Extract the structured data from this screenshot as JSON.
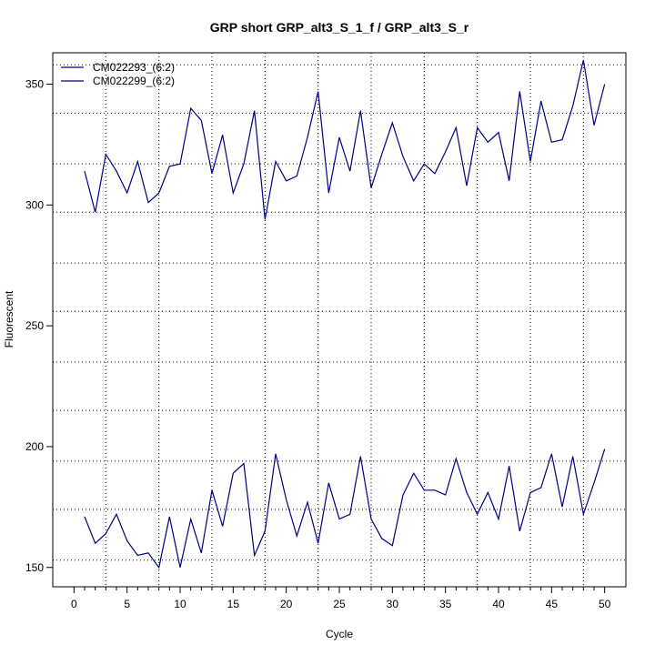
{
  "chart_data": {
    "type": "line",
    "title": "GRP short GRP_alt3_S_1_f / GRP_alt3_S_r",
    "xlabel": "Cycle",
    "ylabel": "Fluorescent",
    "xlim": [
      -2,
      52
    ],
    "ylim": [
      142,
      363
    ],
    "x_ticks": [
      0,
      5,
      10,
      15,
      20,
      25,
      30,
      35,
      40,
      45,
      50
    ],
    "y_ticks": [
      150,
      200,
      250,
      300,
      350
    ],
    "x_grid": [
      3,
      8,
      13,
      18,
      23,
      28,
      33,
      38,
      43,
      48
    ],
    "y_grid": [
      153,
      174,
      194,
      215,
      235,
      256,
      276,
      297,
      317,
      338,
      358
    ],
    "legend_position": "top-left",
    "x": [
      1,
      2,
      3,
      4,
      5,
      6,
      7,
      8,
      9,
      10,
      11,
      12,
      13,
      14,
      15,
      16,
      17,
      18,
      19,
      20,
      21,
      22,
      23,
      24,
      25,
      26,
      27,
      28,
      29,
      30,
      31,
      32,
      33,
      34,
      35,
      36,
      37,
      38,
      39,
      40,
      41,
      42,
      43,
      44,
      45,
      46,
      47,
      48,
      49,
      50
    ],
    "series": [
      {
        "name": "CM022293_(6:2)",
        "color": "#00007F",
        "values": [
          314,
          297,
          321,
          314,
          305,
          318,
          301,
          305,
          316,
          317,
          340,
          335,
          313,
          329,
          305,
          317,
          339,
          294,
          318,
          310,
          312,
          328,
          347,
          305,
          328,
          314,
          339,
          307,
          321,
          334,
          320,
          310,
          317,
          313,
          322,
          332,
          308,
          332,
          326,
          330,
          310,
          347,
          318,
          343,
          326,
          327,
          341,
          360,
          333,
          350
        ]
      },
      {
        "name": "CM022299_(6:2)",
        "color": "#00007F",
        "values": [
          171,
          160,
          164,
          172,
          161,
          155,
          156,
          150,
          171,
          150,
          170,
          156,
          182,
          167,
          189,
          193,
          155,
          165,
          197,
          178,
          163,
          177,
          160,
          185,
          170,
          172,
          196,
          170,
          162,
          159,
          180,
          189,
          182,
          182,
          180,
          195,
          181,
          172,
          181,
          170,
          192,
          165,
          181,
          183,
          197,
          175,
          196,
          172,
          185,
          199
        ]
      }
    ]
  }
}
